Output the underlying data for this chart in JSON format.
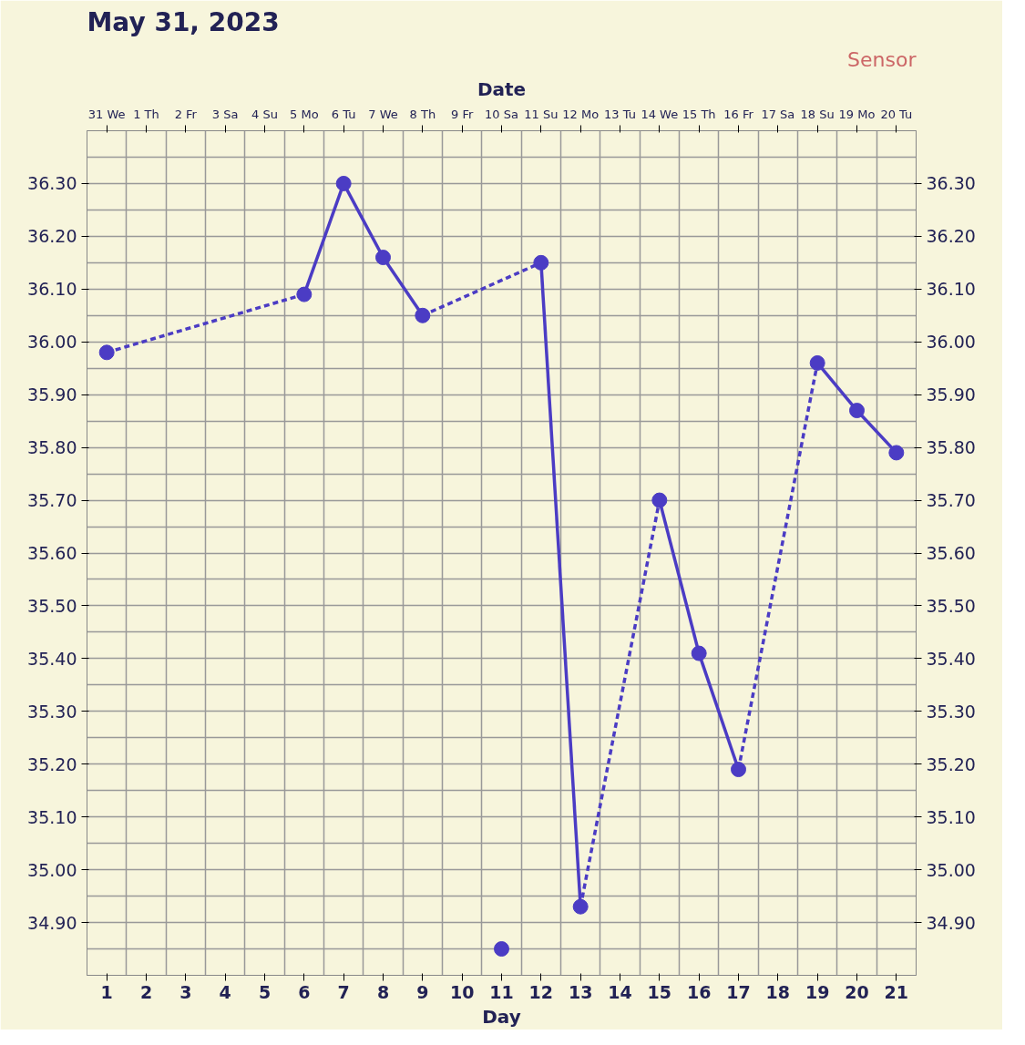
{
  "chart_data": {
    "type": "line",
    "title": "May 31, 2023",
    "xlabel": "Day",
    "x2label": "Date",
    "annotations": [
      "Sensor"
    ],
    "xlim": [
      0.5,
      21.5
    ],
    "ylim": [
      34.8,
      36.4
    ],
    "y2lim": [
      34.8,
      36.4
    ],
    "x2lim": [
      "2023-05-30T12:00",
      "2023-06-20T12:00"
    ],
    "xticks": [
      1,
      2,
      3,
      4,
      5,
      6,
      7,
      8,
      9,
      10,
      11,
      12,
      13,
      14,
      15,
      16,
      17,
      18,
      19,
      20,
      21
    ],
    "x2ticks": [
      {
        "value": "2023-05-31",
        "label": "31 We"
      },
      {
        "value": "2023-06-01",
        "label": "1 Th"
      },
      {
        "value": "2023-06-02",
        "label": "2 Fr"
      },
      {
        "value": "2023-06-03",
        "label": "3 Sa"
      },
      {
        "value": "2023-06-04",
        "label": "4 Su"
      },
      {
        "value": "2023-06-05",
        "label": "5 Mo"
      },
      {
        "value": "2023-06-06",
        "label": "6 Tu"
      },
      {
        "value": "2023-06-07",
        "label": "7 We"
      },
      {
        "value": "2023-06-08",
        "label": "8 Th"
      },
      {
        "value": "2023-06-09",
        "label": "9 Fr"
      },
      {
        "value": "2023-06-10",
        "label": "10 Sa"
      },
      {
        "value": "2023-06-11",
        "label": "11 Su"
      },
      {
        "value": "2023-06-12",
        "label": "12 Mo"
      },
      {
        "value": "2023-06-13",
        "label": "13 Tu"
      },
      {
        "value": "2023-06-14",
        "label": "14 We"
      },
      {
        "value": "2023-06-15",
        "label": "15 Th"
      },
      {
        "value": "2023-06-16",
        "label": "16 Fr"
      },
      {
        "value": "2023-06-17",
        "label": "17 Sa"
      },
      {
        "value": "2023-06-18",
        "label": "18 Su"
      },
      {
        "value": "2023-06-19",
        "label": "19 Mo"
      },
      {
        "value": "2023-06-20",
        "label": "20 Tu"
      }
    ],
    "yticks": [
      {
        "value": 34.9,
        "label": "34.90"
      },
      {
        "value": 35.0,
        "label": "35.00"
      },
      {
        "value": 35.1,
        "label": "35.10"
      },
      {
        "value": 35.2,
        "label": "35.20"
      },
      {
        "value": 35.3,
        "label": "35.30"
      },
      {
        "value": 35.4,
        "label": "35.40"
      },
      {
        "value": 35.5,
        "label": "35.50"
      },
      {
        "value": 35.6,
        "label": "35.60"
      },
      {
        "value": 35.7,
        "label": "35.70"
      },
      {
        "value": 35.8,
        "label": "35.80"
      },
      {
        "value": 35.9,
        "label": "35.90"
      },
      {
        "value": 36.0,
        "label": "36.00"
      },
      {
        "value": 36.1,
        "label": "36.10"
      },
      {
        "value": 36.2,
        "label": "36.20"
      },
      {
        "value": 36.3,
        "label": "36.30"
      }
    ],
    "y2ticks": [
      {
        "value": 34.9,
        "label": "34.90"
      },
      {
        "value": 35.0,
        "label": "35.00"
      },
      {
        "value": 35.1,
        "label": "35.10"
      },
      {
        "value": 35.2,
        "label": "35.20"
      },
      {
        "value": 35.3,
        "label": "35.30"
      },
      {
        "value": 35.4,
        "label": "35.40"
      },
      {
        "value": 35.5,
        "label": "35.50"
      },
      {
        "value": 35.6,
        "label": "35.60"
      },
      {
        "value": 35.7,
        "label": "35.70"
      },
      {
        "value": 35.8,
        "label": "35.80"
      },
      {
        "value": 35.9,
        "label": "35.90"
      },
      {
        "value": 36.0,
        "label": "36.00"
      },
      {
        "value": 36.1,
        "label": "36.10"
      },
      {
        "value": 36.2,
        "label": "36.20"
      },
      {
        "value": 36.3,
        "label": "36.30"
      }
    ],
    "grid": true,
    "marker": "circle",
    "series": [
      {
        "color": "#4b3cc4",
        "x": [
          1,
          6,
          7,
          8,
          9,
          12,
          13,
          15,
          16,
          17,
          19,
          20,
          21
        ],
        "values": [
          35.98,
          36.09,
          36.3,
          36.16,
          36.05,
          36.15,
          34.93,
          35.7,
          35.41,
          35.19,
          35.96,
          35.87,
          35.79
        ]
      },
      {
        "type": "scatter",
        "color": "#4b3cc4",
        "x": [
          11
        ],
        "values": [
          34.85
        ]
      }
    ]
  }
}
